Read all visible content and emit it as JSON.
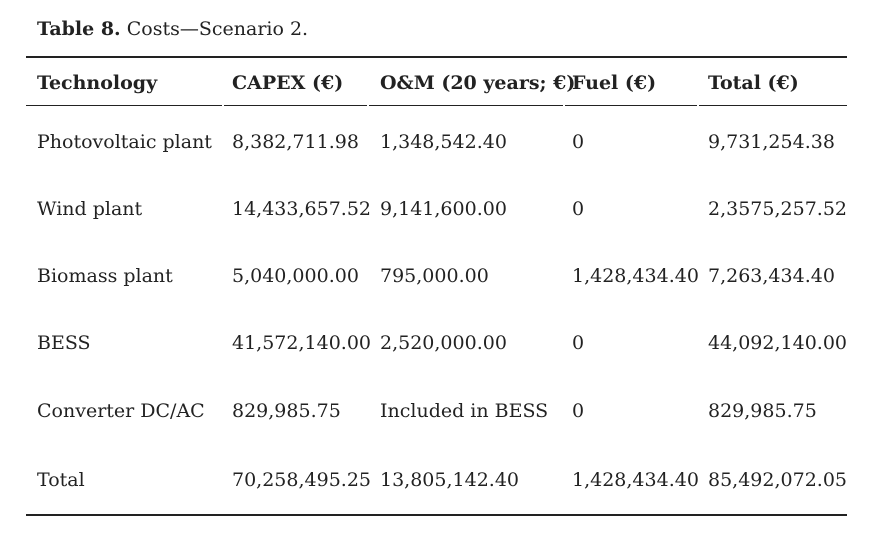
{
  "caption": {
    "label": "Table 8.",
    "text": "Costs—Scenario 2."
  },
  "table": {
    "headers": [
      "Technology",
      "CAPEX (€)",
      "O&M (20 years; €)",
      "Fuel (€)",
      "Total (€)"
    ],
    "rows": [
      [
        "Photovoltaic plant",
        "8,382,711.98",
        "1,348,542.40",
        "0",
        "9,731,254.38"
      ],
      [
        "Wind plant",
        "14,433,657.52",
        "9,141,600.00",
        "0",
        "2,3575,257.52"
      ],
      [
        "Biomass plant",
        "5,040,000.00",
        "795,000.00",
        "1,428,434.40",
        "7,263,434.40"
      ],
      [
        "BESS",
        "41,572,140.00",
        "2,520,000.00",
        "0",
        "44,092,140.00"
      ],
      [
        "Converter DC/AC",
        "829,985.75",
        "Included in BESS",
        "0",
        "829,985.75"
      ],
      [
        "Total",
        "70,258,495.25",
        "13,805,142.40",
        "1,428,434.40",
        "85,492,072.05"
      ]
    ]
  }
}
